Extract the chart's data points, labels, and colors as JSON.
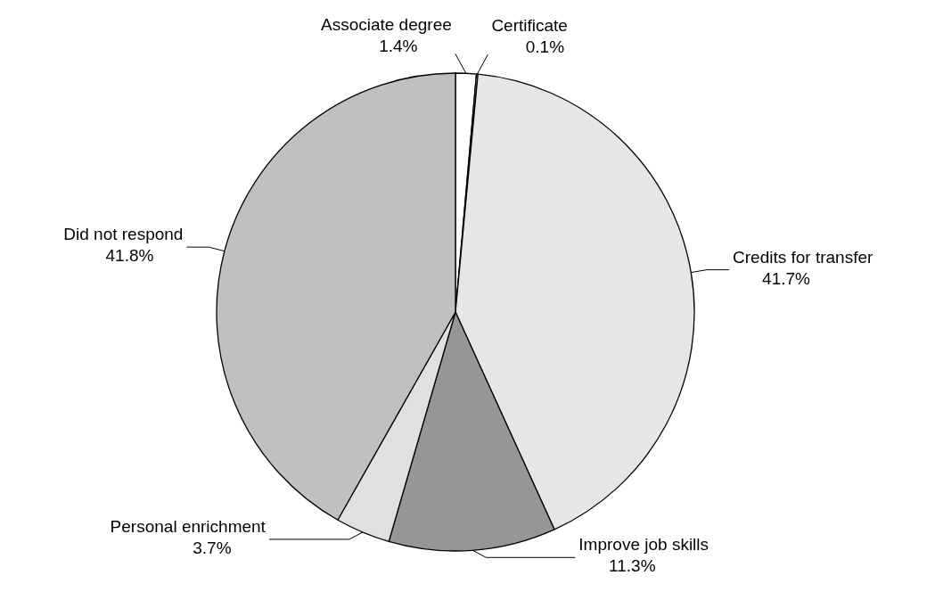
{
  "chart_data": {
    "type": "pie",
    "categories": [
      "Associate degree",
      "Certificate",
      "Credits for transfer",
      "Improve job skills",
      "Personal enrichment",
      "Did not respond"
    ],
    "values": [
      1.4,
      0.1,
      41.7,
      11.3,
      3.7,
      41.8
    ],
    "value_labels": [
      "1.4%",
      "0.1%",
      "41.7%",
      "11.3%",
      "3.7%",
      "41.8%"
    ],
    "colors": [
      "#ffffff",
      "#ffffff",
      "#e6e6e6",
      "#969696",
      "#e0e0e0",
      "#c0c0c0"
    ],
    "legend": false
  }
}
